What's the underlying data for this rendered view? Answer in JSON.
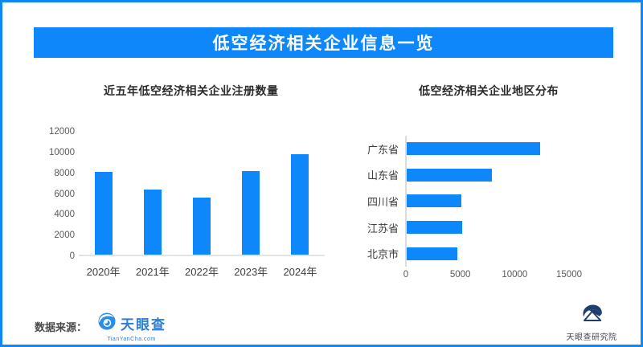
{
  "header": {
    "title": "低空经济相关企业信息一览"
  },
  "chart_data": [
    {
      "type": "bar",
      "orientation": "vertical",
      "title": "近五年低空经济相关企业注册数量",
      "categories": [
        "2020年",
        "2021年",
        "2022年",
        "2023年",
        "2024年"
      ],
      "values": [
        7950,
        6250,
        5520,
        8020,
        9690
      ],
      "xlabel": "",
      "ylabel": "",
      "ylim": [
        0,
        12000
      ],
      "yticks": [
        0,
        2000,
        4000,
        6000,
        8000,
        10000,
        12000
      ],
      "grid": false,
      "legend": false,
      "bar_color": "#0d87f9"
    },
    {
      "type": "bar",
      "orientation": "horizontal",
      "title": "低空经济相关企业地区分布",
      "categories": [
        "广东省",
        "山东省",
        "四川省",
        "江苏省",
        "北京市"
      ],
      "values": [
        12270,
        7830,
        5040,
        5070,
        4670
      ],
      "xlabel": "",
      "ylabel": "",
      "xlim": [
        0,
        15000
      ],
      "xticks": [
        0,
        5000,
        10000,
        15000
      ],
      "grid": false,
      "legend": false,
      "bar_color": "#0d87f9"
    }
  ],
  "footer": {
    "source_label": "数据来源：",
    "source_logo": {
      "name": "天眼查",
      "subtext": "TianYanCha.com"
    },
    "institute": {
      "name": "天眼查研究院"
    }
  },
  "colors": {
    "accent_blue": "#0d87f9",
    "logo_blue": "#2b8de6",
    "institute_navy": "#1d3e6e"
  }
}
